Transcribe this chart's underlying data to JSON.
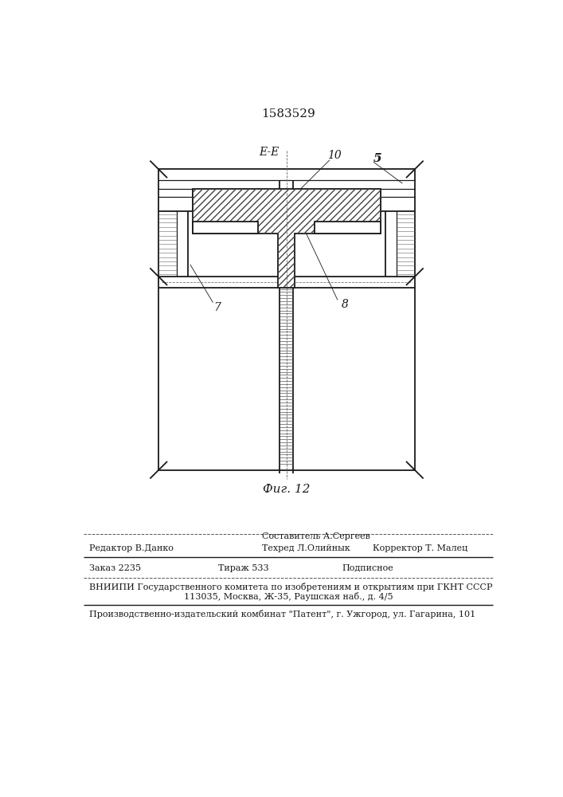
{
  "title_number": "1583529",
  "fig_label": "Фиг. 12",
  "section_label": "E-E",
  "label_10": "10",
  "label_5": "5",
  "label_7": "7",
  "label_8": "8",
  "footer_sestavitel": "Составитель А.Сергеев",
  "footer_redaktor": "Редактор В.Данко",
  "footer_tehred": "Техред Л.Олийнык",
  "footer_korrektor": "Корректор Т. Малец",
  "footer_zakaz": "Заказ 2235",
  "footer_tirazh": "Тираж 533",
  "footer_podpisnoe": "Подписное",
  "footer_vniipи": "ВНИИПИ Государственного комитета по изобретениям и открытиям при ГКНТ СССР",
  "footer_addr": "113035, Москва, Ж-35, Раушская наб., д. 4/5",
  "footer_patent": "Производственно-издательский комбинат \"Патент\", г. Ужгород, ул. Гагарина, 101",
  "line_color": "#1a1a1a",
  "hatch_color": "#444444"
}
